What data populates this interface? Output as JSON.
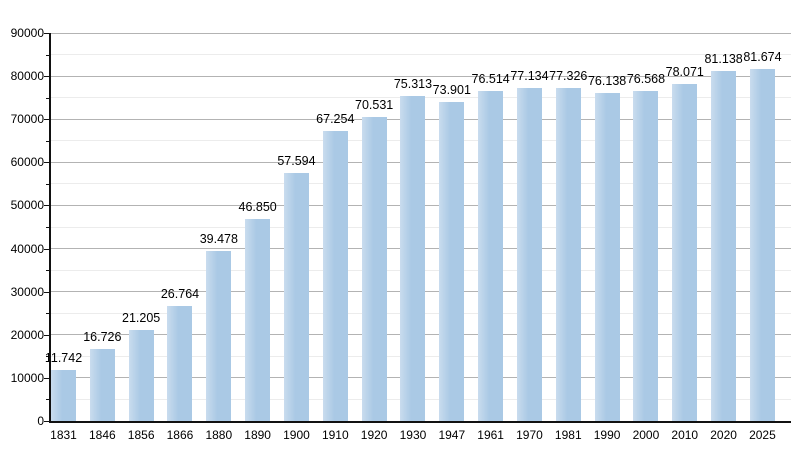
{
  "chart_data": {
    "type": "bar",
    "title": "",
    "xlabel": "",
    "ylabel": "",
    "categories": [
      "1831",
      "1846",
      "1856",
      "1866",
      "1880",
      "1890",
      "1900",
      "1910",
      "1920",
      "1930",
      "1947",
      "1961",
      "1970",
      "1981",
      "1990",
      "2000",
      "2010",
      "2020",
      "2025"
    ],
    "values": [
      11742,
      16726,
      21205,
      26764,
      39478,
      46850,
      57594,
      67254,
      70531,
      75313,
      73901,
      76514,
      77134,
      77326,
      76138,
      76568,
      78071,
      81138,
      81674
    ],
    "value_labels": [
      "11.742",
      "16.726",
      "21.205",
      "26.764",
      "39.478",
      "46.850",
      "57.594",
      "67.254",
      "70.531",
      "75.313",
      "73.901",
      "76.514",
      "77.134",
      "77.326",
      "76.138",
      "76.568",
      "78.071",
      "81.138",
      "81.674"
    ],
    "ylim": [
      0,
      90000
    ],
    "y_major_ticks": [
      0,
      10000,
      20000,
      30000,
      40000,
      50000,
      60000,
      70000,
      80000,
      90000
    ],
    "y_major_tick_labels": [
      "0",
      "10000",
      "20000",
      "30000",
      "40000",
      "50000",
      "60000",
      "70000",
      "80000",
      "90000"
    ],
    "y_minor_ticks": [
      5000,
      15000,
      25000,
      35000,
      45000,
      55000,
      65000,
      75000,
      85000
    ],
    "grid": "horizontal major and minor",
    "legend_position": "none",
    "colors": {
      "bar_fill": "#aac9e5",
      "bar_fill_light": "#c9dcee",
      "grid_major": "#b3b3b3",
      "grid_minor": "#ececec",
      "axis": "#111111",
      "text": "#000000",
      "background": "#ffffff"
    }
  }
}
